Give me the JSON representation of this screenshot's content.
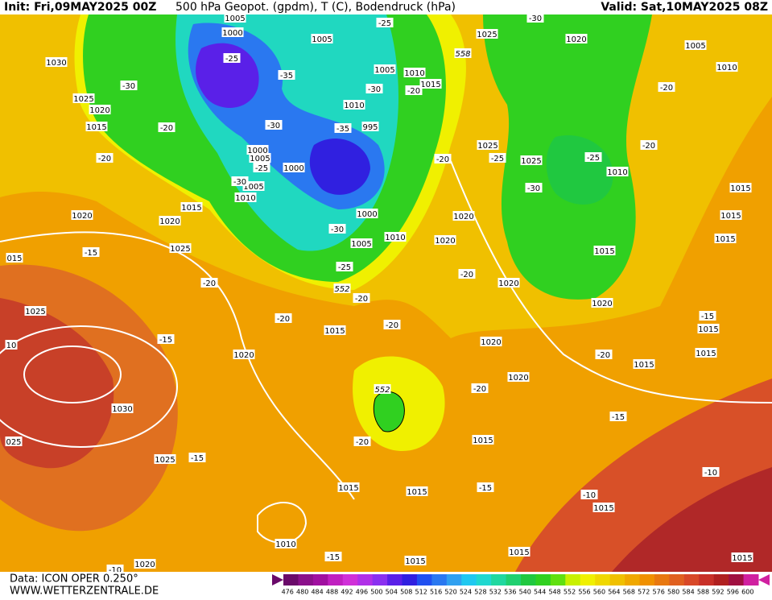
{
  "header": {
    "init": "Init: Fri,09MAY2025 00Z",
    "title": "500 hPa Geopot. (gpdm), T (C), Bodendruck (hPa)",
    "valid": "Valid: Sat,10MAY2025 08Z"
  },
  "footer": {
    "data": "Data: ICON OPER 0.250°",
    "site": "WWW.WETTERZENTRALE.DE"
  },
  "pressure_labels": [
    "1005",
    "1000",
    "1005",
    "1025",
    "1020",
    "1005",
    "1030",
    "1005",
    "1010",
    "1015",
    "1010",
    "1025",
    "1020",
    "1010",
    "1015",
    "995",
    "1000",
    "1005",
    "1025",
    "1025",
    "1000",
    "1010",
    "1005",
    "1015",
    "1010",
    "1015",
    "1020",
    "1020",
    "1020",
    "1000",
    "1015",
    "1010",
    "1020",
    "1015",
    "1005",
    "1025",
    "015",
    "1015",
    "1020",
    "1025",
    "1020",
    "1015",
    "1015",
    "1020",
    "1020",
    "1015",
    "1015",
    "1020",
    "1030",
    "025",
    "1015",
    "1025",
    "1015",
    "1015",
    "1015",
    "1010",
    "1020",
    "1015",
    "1015",
    "1015",
    "10"
  ],
  "temperature_labels": [
    "-30",
    "-25",
    "-30",
    "-25",
    "-35",
    "-30",
    "-20",
    "-20",
    "-20",
    "-30",
    "-35",
    "-20",
    "-25",
    "-20",
    "-25",
    "-25",
    "-20",
    "-30",
    "-30",
    "-30",
    "-15",
    "-25",
    "-20",
    "-20",
    "-20",
    "-20",
    "-15",
    "-20",
    "-15",
    "-20",
    "-20",
    "-15",
    "-20",
    "-15",
    "-15",
    "-10",
    "-10",
    "-15",
    "-10"
  ],
  "geopotential_labels": [
    "558",
    "552",
    "552"
  ],
  "colorbar": {
    "values": [
      476,
      480,
      484,
      488,
      492,
      496,
      500,
      504,
      508,
      512,
      516,
      520,
      524,
      528,
      532,
      536,
      540,
      544,
      548,
      552,
      556,
      560,
      564,
      568,
      572,
      576,
      580,
      584,
      588,
      592,
      596,
      600
    ],
    "colors": [
      "#6a0a6a",
      "#8a108a",
      "#a010a0",
      "#c020c0",
      "#d030d8",
      "#b030e8",
      "#8a30f0",
      "#5a20e8",
      "#3020e0",
      "#2050f0",
      "#2a78f0",
      "#30a0f0",
      "#20c8f0",
      "#20d8d0",
      "#20d8a0",
      "#20d070",
      "#20c840",
      "#30d020",
      "#60e010",
      "#c8f000",
      "#f0f000",
      "#f0d800",
      "#f0c000",
      "#f0a800",
      "#f09000",
      "#e87810",
      "#e06020",
      "#d84828",
      "#c83028",
      "#b02020",
      "#a01040",
      "#d020a0"
    ]
  }
}
